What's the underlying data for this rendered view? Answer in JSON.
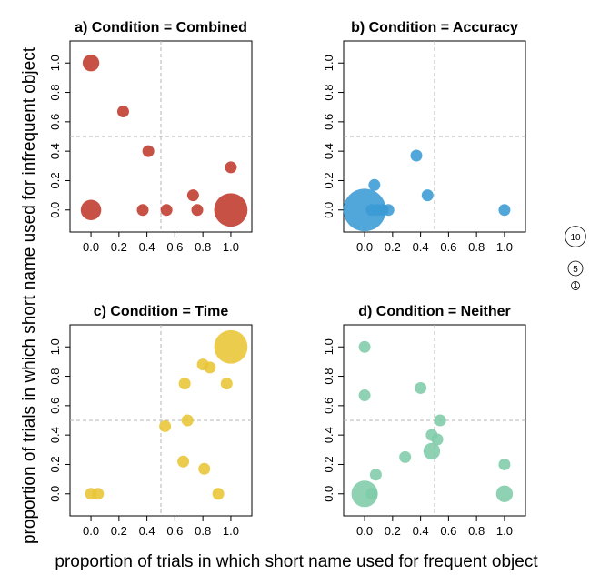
{
  "chart_data": [
    {
      "type": "scatter",
      "title": "a) Condition = Combined",
      "color": "#C0392B",
      "xlim": [
        -0.15,
        1.15
      ],
      "ylim": [
        -0.15,
        1.15
      ],
      "xticks": [
        "0.0",
        "0.2",
        "0.4",
        "0.6",
        "0.8",
        "1.0"
      ],
      "yticks": [
        "0.0",
        "0.2",
        "0.4",
        "0.6",
        "0.8",
        "1.0"
      ],
      "reference_lines": {
        "x": 0.5,
        "y": 0.5
      },
      "points": [
        {
          "x": 0.0,
          "y": 1.0,
          "n": 2
        },
        {
          "x": 0.23,
          "y": 0.67,
          "n": 1
        },
        {
          "x": 0.41,
          "y": 0.4,
          "n": 1
        },
        {
          "x": 1.0,
          "y": 0.29,
          "n": 1
        },
        {
          "x": 0.73,
          "y": 0.1,
          "n": 1
        },
        {
          "x": 0.0,
          "y": 0.0,
          "n": 3
        },
        {
          "x": 0.37,
          "y": 0.0,
          "n": 1
        },
        {
          "x": 0.54,
          "y": 0.0,
          "n": 1
        },
        {
          "x": 0.76,
          "y": 0.0,
          "n": 1
        },
        {
          "x": 1.0,
          "y": 0.0,
          "n": 8
        }
      ]
    },
    {
      "type": "scatter",
      "title": "b) Condition = Accuracy",
      "color": "#3A9BD5",
      "xlim": [
        -0.15,
        1.15
      ],
      "ylim": [
        -0.15,
        1.15
      ],
      "xticks": [
        "0.0",
        "0.2",
        "0.4",
        "0.6",
        "0.8",
        "1.0"
      ],
      "yticks": [
        "0.0",
        "0.2",
        "0.4",
        "0.6",
        "0.8",
        "1.0"
      ],
      "reference_lines": {
        "x": 0.5,
        "y": 0.5
      },
      "points": [
        {
          "x": 0.0,
          "y": 0.0,
          "n": 13
        },
        {
          "x": 0.07,
          "y": 0.17,
          "n": 1
        },
        {
          "x": 0.05,
          "y": 0.0,
          "n": 1
        },
        {
          "x": 0.09,
          "y": 0.0,
          "n": 1
        },
        {
          "x": 0.13,
          "y": 0.0,
          "n": 1
        },
        {
          "x": 0.17,
          "y": 0.0,
          "n": 1
        },
        {
          "x": 0.37,
          "y": 0.37,
          "n": 1
        },
        {
          "x": 0.45,
          "y": 0.1,
          "n": 1
        },
        {
          "x": 1.0,
          "y": 0.0,
          "n": 1
        }
      ]
    },
    {
      "type": "scatter",
      "title": "c) Condition = Time",
      "color": "#E8C534",
      "xlim": [
        -0.15,
        1.15
      ],
      "ylim": [
        -0.15,
        1.15
      ],
      "xticks": [
        "0.0",
        "0.2",
        "0.4",
        "0.6",
        "0.8",
        "1.0"
      ],
      "yticks": [
        "0.0",
        "0.2",
        "0.4",
        "0.6",
        "0.8",
        "1.0"
      ],
      "reference_lines": {
        "x": 0.5,
        "y": 0.5
      },
      "points": [
        {
          "x": 1.0,
          "y": 1.0,
          "n": 8
        },
        {
          "x": 0.8,
          "y": 0.88,
          "n": 1
        },
        {
          "x": 0.85,
          "y": 0.86,
          "n": 1
        },
        {
          "x": 0.67,
          "y": 0.75,
          "n": 1
        },
        {
          "x": 0.97,
          "y": 0.75,
          "n": 1
        },
        {
          "x": 0.69,
          "y": 0.5,
          "n": 1
        },
        {
          "x": 0.53,
          "y": 0.46,
          "n": 1
        },
        {
          "x": 0.66,
          "y": 0.22,
          "n": 1
        },
        {
          "x": 0.81,
          "y": 0.17,
          "n": 1
        },
        {
          "x": 0.91,
          "y": 0.0,
          "n": 1
        },
        {
          "x": 0.0,
          "y": 0.0,
          "n": 1
        },
        {
          "x": 0.05,
          "y": 0.0,
          "n": 1
        }
      ]
    },
    {
      "type": "scatter",
      "title": "d) Condition = Neither",
      "color": "#7FCBA8",
      "xlim": [
        -0.15,
        1.15
      ],
      "ylim": [
        -0.15,
        1.15
      ],
      "xticks": [
        "0.0",
        "0.2",
        "0.4",
        "0.6",
        "0.8",
        "1.0"
      ],
      "yticks": [
        "0.0",
        "0.2",
        "0.4",
        "0.6",
        "0.8",
        "1.0"
      ],
      "reference_lines": {
        "x": 0.5,
        "y": 0.5
      },
      "points": [
        {
          "x": 0.0,
          "y": 1.0,
          "n": 1
        },
        {
          "x": 0.0,
          "y": 0.67,
          "n": 1
        },
        {
          "x": 0.4,
          "y": 0.72,
          "n": 1
        },
        {
          "x": 0.54,
          "y": 0.5,
          "n": 1
        },
        {
          "x": 0.48,
          "y": 0.4,
          "n": 1
        },
        {
          "x": 0.52,
          "y": 0.37,
          "n": 1
        },
        {
          "x": 0.48,
          "y": 0.29,
          "n": 2
        },
        {
          "x": 0.29,
          "y": 0.25,
          "n": 1
        },
        {
          "x": 1.0,
          "y": 0.2,
          "n": 1
        },
        {
          "x": 0.08,
          "y": 0.13,
          "n": 1
        },
        {
          "x": 0.0,
          "y": 0.0,
          "n": 5
        },
        {
          "x": 0.05,
          "y": 0.0,
          "n": 1
        },
        {
          "x": 1.0,
          "y": 0.0,
          "n": 2
        }
      ]
    }
  ],
  "labels": {
    "ylabel": "proportion of trials in which short name used for infrequent object",
    "xlabel": "proportion of trials in which short name used for frequent object"
  },
  "legend": {
    "sizes": [
      {
        "label": "10",
        "n": 10
      },
      {
        "label": "5",
        "n": 5
      },
      {
        "label": "1",
        "n": 1
      }
    ]
  }
}
